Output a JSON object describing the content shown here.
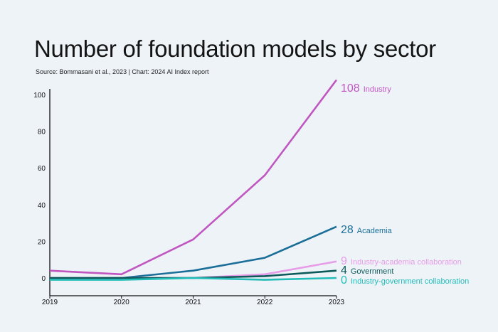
{
  "title": "Number of foundation models by sector",
  "subtitle": "Source: Bommasani et al., 2023 | Chart: 2024 AI Index report",
  "chart_data": {
    "type": "line",
    "x": [
      2019,
      2020,
      2021,
      2022,
      2023
    ],
    "x_ticks": [
      "2019",
      "2020",
      "2021",
      "2022",
      "2023"
    ],
    "y_ticks": [
      "100",
      "80",
      "60",
      "40",
      "20",
      "0"
    ],
    "ylim": [
      0,
      100
    ],
    "grid": false,
    "series": [
      {
        "name": "Industry",
        "color": "#c056c0",
        "values": [
          4,
          2,
          21,
          56,
          108
        ],
        "end_label": "108"
      },
      {
        "name": "Academia",
        "color": "#1a6e98",
        "values": [
          0,
          0,
          4,
          11,
          28
        ],
        "end_label": "28"
      },
      {
        "name": "Industry-academia collaboration",
        "color": "#e79ce7",
        "values": [
          0,
          0,
          0,
          2,
          9
        ],
        "end_label": "9"
      },
      {
        "name": "Government",
        "color": "#0d5a5a",
        "values": [
          0,
          0,
          0,
          1,
          4
        ],
        "end_label": "4"
      },
      {
        "name": "Industry-government collaboration",
        "color": "#22bdb8",
        "values": [
          -1,
          -1,
          0,
          -1,
          0
        ],
        "end_label": "0"
      }
    ]
  }
}
